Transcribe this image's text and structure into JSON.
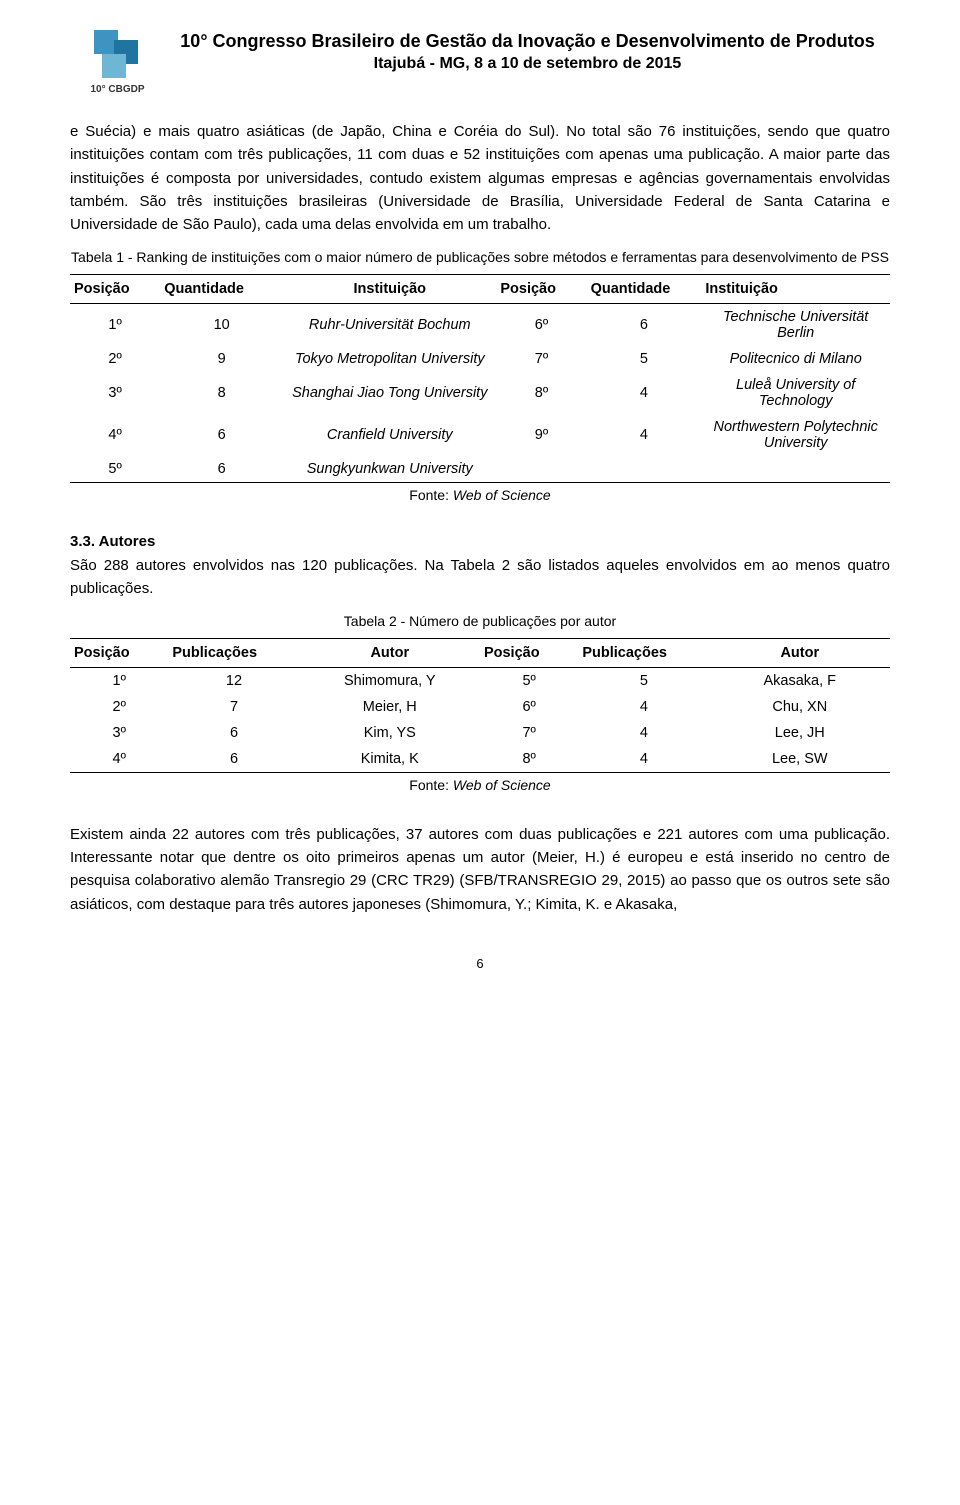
{
  "header": {
    "logo_label": "10° CBGDP",
    "title_full": "10° Congresso Brasileiro de Gestão da Inovação e Desenvolvimento de Produtos",
    "subtitle": "Itajubá - MG, 8 a 10 de setembro de 2015"
  },
  "paragraph1": "e Suécia) e mais quatro asiáticas (de Japão, China e Coréia do Sul). No total são 76 instituições, sendo que quatro instituições contam com três publicações, 11 com duas e 52 instituições com apenas uma publicação. A maior parte das instituições é composta por universidades, contudo existem algumas empresas e agências governamentais envolvidas também. São três instituições brasileiras (Universidade de Brasília, Universidade Federal de Santa Catarina e Universidade de São Paulo), cada uma delas envolvida em um trabalho.",
  "table1": {
    "caption": "Tabela 1 - Ranking de instituições com o maior número de publicações sobre métodos e ferramentas para desenvolvimento de PSS",
    "headers": {
      "pos1": "Posição",
      "qty1": "Quantidade",
      "inst1": "Instituição",
      "pos2": "Posição",
      "qty2": "Quantidade",
      "inst2": "Instituição"
    },
    "rows": [
      {
        "p1": "1º",
        "q1": "10",
        "i1": "Ruhr-Universität Bochum",
        "p2": "6º",
        "q2": "6",
        "i2": "Technische Universität Berlin"
      },
      {
        "p1": "2º",
        "q1": "9",
        "i1": "Tokyo Metropolitan University",
        "p2": "7º",
        "q2": "5",
        "i2": "Politecnico di Milano"
      },
      {
        "p1": "3º",
        "q1": "8",
        "i1": "Shanghai Jiao Tong University",
        "p2": "8º",
        "q2": "4",
        "i2": "Luleå University of Technology"
      },
      {
        "p1": "4º",
        "q1": "6",
        "i1": "Cranfield University",
        "p2": "9º",
        "q2": "4",
        "i2": "Northwestern Polytechnic University"
      },
      {
        "p1": "5º",
        "q1": "6",
        "i1": "Sungkyunkwan University",
        "p2": "",
        "q2": "",
        "i2": ""
      }
    ],
    "fonte_label": "Fonte: ",
    "fonte_value": "Web of Science"
  },
  "section33": {
    "heading": "3.3. Autores",
    "text": "São 288 autores envolvidos nas 120 publicações. Na Tabela 2 são listados aqueles envolvidos em ao menos quatro publicações."
  },
  "table2": {
    "caption": "Tabela 2 - Número de publicações por autor",
    "headers": {
      "pos1": "Posição",
      "pub1": "Publicações",
      "aut1": "Autor",
      "pos2": "Posição",
      "pub2": "Publicações",
      "aut2": "Autor"
    },
    "rows": [
      {
        "p1": "1º",
        "q1": "12",
        "a1": "Shimomura, Y",
        "p2": "5º",
        "q2": "5",
        "a2": "Akasaka, F"
      },
      {
        "p1": "2º",
        "q1": "7",
        "a1": "Meier, H",
        "p2": "6º",
        "q2": "4",
        "a2": "Chu, XN"
      },
      {
        "p1": "3º",
        "q1": "6",
        "a1": "Kim, YS",
        "p2": "7º",
        "q2": "4",
        "a2": "Lee, JH"
      },
      {
        "p1": "4º",
        "q1": "6",
        "a1": "Kimita, K",
        "p2": "8º",
        "q2": "4",
        "a2": "Lee, SW"
      }
    ],
    "fonte_label": "Fonte: ",
    "fonte_value": "Web of Science"
  },
  "paragraph2": "Existem ainda 22 autores com três publicações, 37 autores com duas publicações e 221 autores com uma publicação. Interessante notar que dentre os oito primeiros apenas um autor (Meier, H.) é europeu e está inserido no centro de pesquisa colaborativo alemão Transregio 29 (CRC TR29) (SFB/TRANSREGIO 29, 2015) ao passo que os outros sete são asiáticos, com destaque para três autores japoneses (Shimomura, Y.; Kimita, K. e Akasaka,",
  "page_number": "6"
}
